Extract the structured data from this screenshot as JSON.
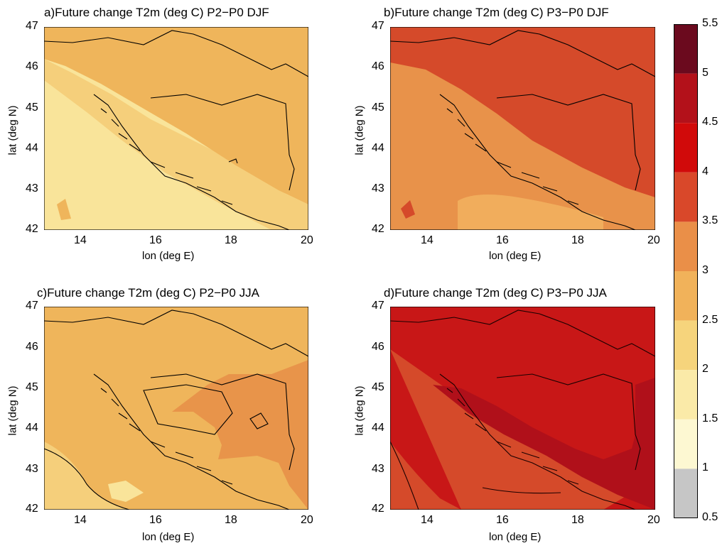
{
  "panels": [
    {
      "id": "a",
      "title": "a)Future change T2m (deg C) P2−P0 DJF",
      "xticks": [
        "14",
        "16",
        "18",
        "20"
      ],
      "yticks": [
        "47",
        "46",
        "45",
        "44",
        "43",
        "42"
      ],
      "xlabel": "lon (deg E)",
      "ylabel": "lat (deg N)",
      "colors": {
        "bg": "#f9e49a",
        "mid": "#f5cf7b",
        "main": "#efb55b",
        "spot": "#efb55b"
      }
    },
    {
      "id": "b",
      "title": "b)Future change T2m (deg C) P3−P0 DJF",
      "xticks": [
        "14",
        "16",
        "18",
        "20"
      ],
      "yticks": [
        "47",
        "46",
        "45",
        "44",
        "43",
        "42"
      ],
      "xlabel": "lon (deg E)",
      "ylabel": "lat (deg N)",
      "colors": {
        "bg": "#e8924a",
        "mid": "#f1ad5c",
        "main": "#d54a2a",
        "spot": "#d54a2a"
      }
    },
    {
      "id": "c",
      "title": "c)Future change T2m (deg C) P2−P0 JJA",
      "xticks": [
        "14",
        "16",
        "18",
        "20"
      ],
      "yticks": [
        "47",
        "46",
        "45",
        "44",
        "43",
        "42"
      ],
      "xlabel": "lon (deg E)",
      "ylabel": "lat (deg N)",
      "colors": {
        "bg": "#efb55b",
        "mid": "#f5cf7b",
        "main": "#e8944a",
        "spot": "#f9e49a"
      }
    },
    {
      "id": "d",
      "title": "d)Future change T2m (deg C) P3−P0 JJA",
      "xticks": [
        "14",
        "16",
        "18",
        "20"
      ],
      "yticks": [
        "47",
        "46",
        "45",
        "44",
        "43",
        "42"
      ],
      "xlabel": "lon (deg E)",
      "ylabel": "lat (deg N)",
      "colors": {
        "bg": "#c81717",
        "mid": "#d54a2a",
        "main": "#b0101a",
        "spot": "#d54a2a"
      }
    }
  ],
  "colorbar": {
    "ticks": [
      "5.5",
      "5",
      "4.5",
      "4",
      "3.5",
      "3",
      "2.5",
      "2",
      "1.5",
      "1",
      "0.5"
    ],
    "levels": [
      {
        "range": "5-5.5",
        "color": "#6b0a1e"
      },
      {
        "range": "4.5-5",
        "color": "#b3111a"
      },
      {
        "range": "4-4.5",
        "color": "#d10a0a"
      },
      {
        "range": "3.5-4",
        "color": "#d9482a"
      },
      {
        "range": "3-3.5",
        "color": "#ea8f48"
      },
      {
        "range": "2.5-3",
        "color": "#f1b25a"
      },
      {
        "range": "2-2.5",
        "color": "#f6d47c"
      },
      {
        "range": "1.5-2",
        "color": "#faeaa8"
      },
      {
        "range": "1-1.5",
        "color": "#fdf8d2"
      },
      {
        "range": "0.5-1",
        "color": "#c6c6c6"
      }
    ]
  }
}
